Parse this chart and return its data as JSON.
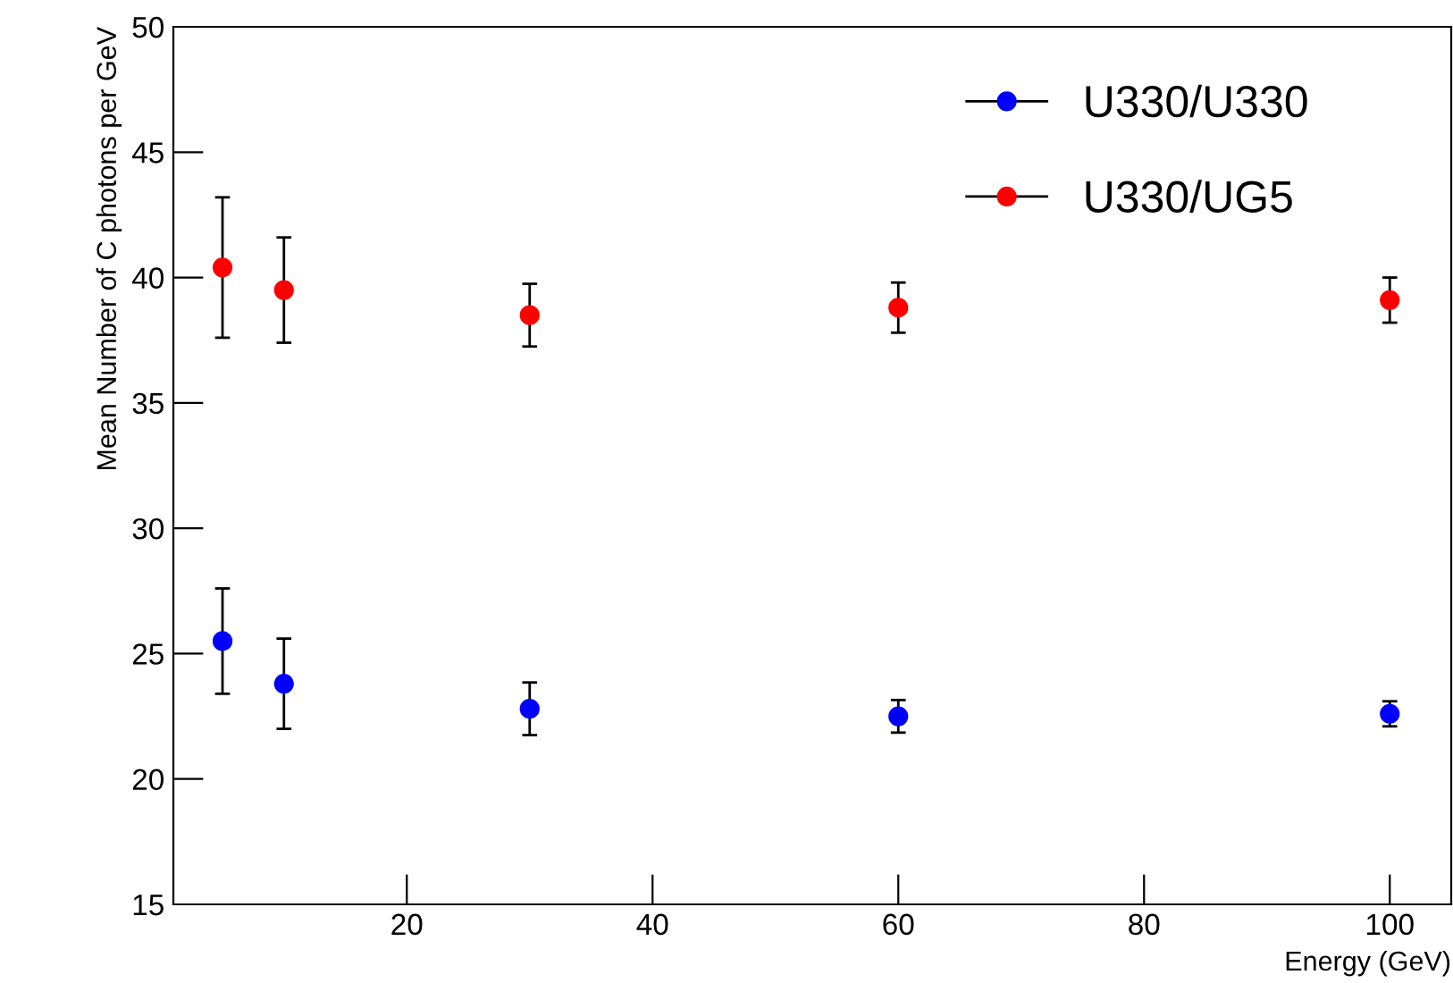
{
  "chart_data": {
    "type": "scatter",
    "xlabel": "Energy (GeV)",
    "ylabel": "Mean Number of C photons per GeV",
    "x": [
      5,
      10,
      30,
      60,
      100
    ],
    "series": [
      {
        "name": "U330/U330",
        "color": "#0000ff",
        "values": [
          25.5,
          23.8,
          22.8,
          22.5,
          22.6
        ],
        "errors": [
          2.1,
          1.8,
          1.05,
          0.65,
          0.5
        ]
      },
      {
        "name": "U330/UG5",
        "color": "#ff0000",
        "values": [
          40.4,
          39.5,
          38.5,
          38.8,
          39.1
        ],
        "errors": [
          2.8,
          2.1,
          1.25,
          1.0,
          0.9
        ]
      }
    ],
    "xlim": [
      1,
      105
    ],
    "xticks": [
      20,
      40,
      60,
      80,
      100
    ],
    "ylim": [
      15,
      50
    ],
    "yticks": [
      15,
      20,
      25,
      30,
      35,
      40,
      45,
      50
    ],
    "marker": "circle",
    "grid": false,
    "legend": "top right"
  }
}
